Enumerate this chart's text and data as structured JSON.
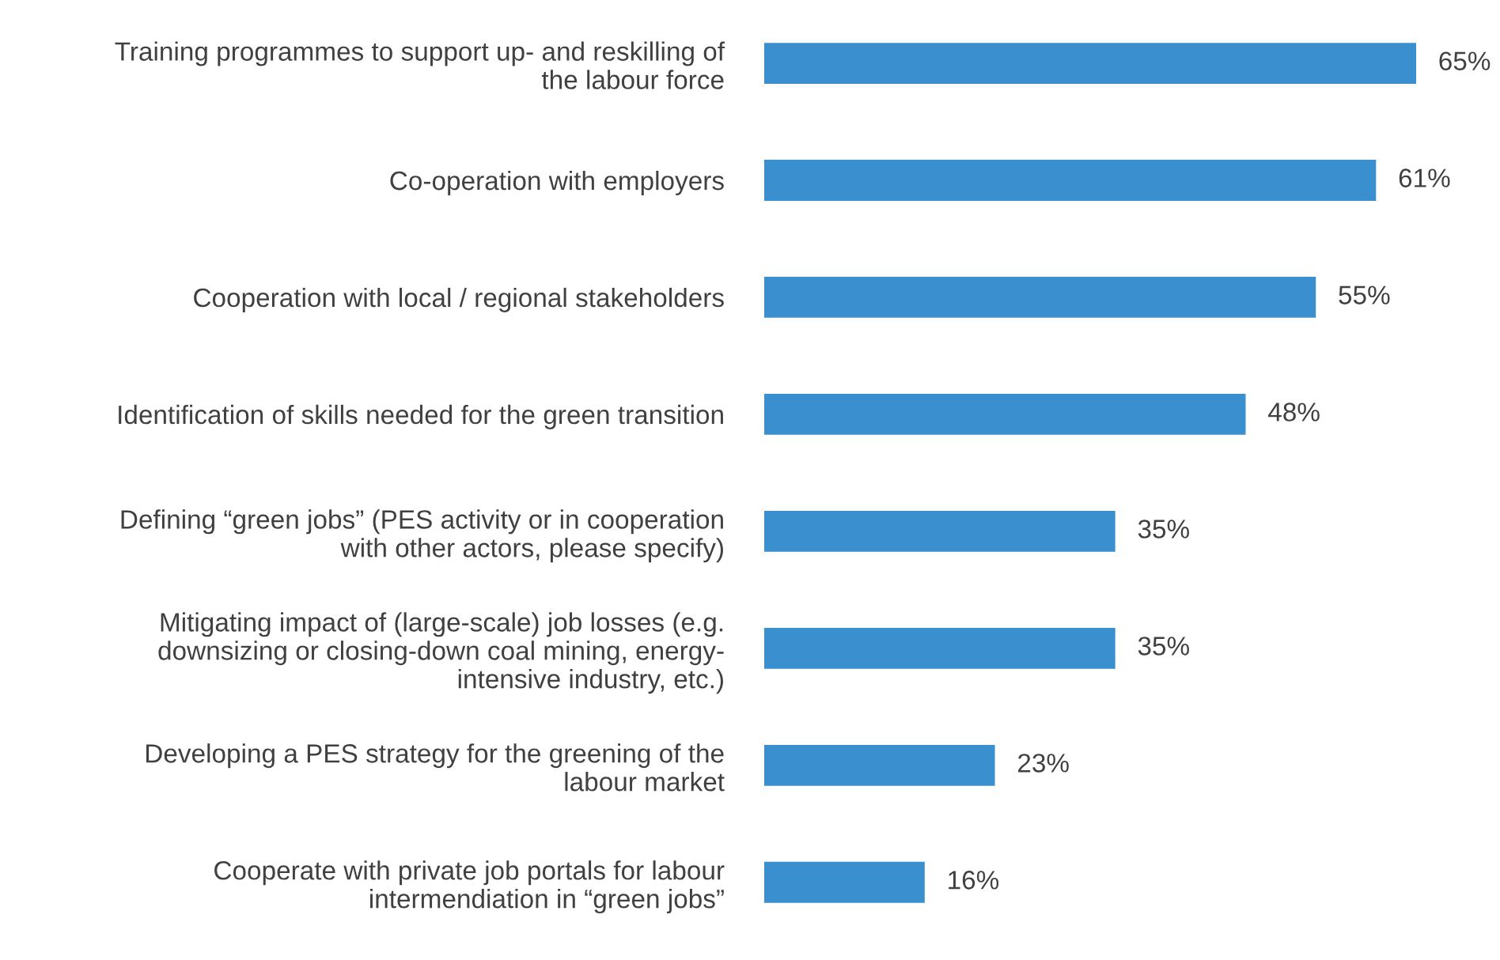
{
  "chart_data": {
    "type": "bar",
    "orientation": "horizontal",
    "categories": [
      "Training programmes to support up- and reskilling of\nthe labour force",
      "Co-operation with employers",
      "Cooperation with local / regional stakeholders",
      "Identification of skills needed for the green transition",
      "Defining “green jobs” (PES activity or in cooperation\nwith other actors, please specify)",
      "Mitigating impact of (large-scale) job losses (e.g.\ndownsizing or closing-down coal mining, energy-\nintensive industry, etc.)",
      "Developing a PES strategy for the greening of the\nlabour market",
      "Cooperate with private job portals for labour\nintermendiation in “green jobs”"
    ],
    "values": [
      65,
      61,
      55,
      48,
      35,
      35,
      23,
      16
    ],
    "value_labels": [
      "65%",
      "61%",
      "55%",
      "48%",
      "35%",
      "35%",
      "23%",
      "16%"
    ],
    "color": "#3a8fcf",
    "grid": false,
    "legend": false,
    "tick_labels": "y"
  }
}
